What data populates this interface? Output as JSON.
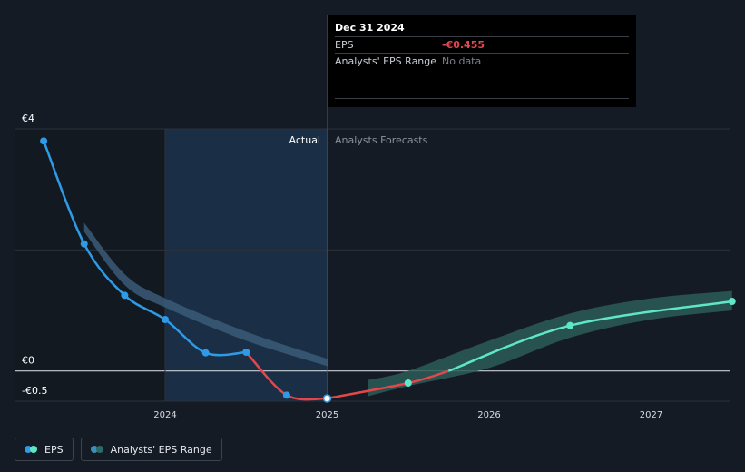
{
  "tooltip": {
    "date": "Dec 31 2024",
    "rows": [
      {
        "label": "EPS",
        "value": "-€0.455"
      },
      {
        "label": "Analysts' EPS Range",
        "value": "No data"
      }
    ]
  },
  "labels": {
    "actual": "Actual",
    "forecast": "Analysts Forecasts"
  },
  "legend": [
    {
      "label": "EPS",
      "colors": [
        "#2f9ae6",
        "#5fe6c8"
      ]
    },
    {
      "label": "Analysts' EPS Range",
      "colors": [
        "#3c8fb8",
        "#2a6a6a"
      ]
    }
  ],
  "colors": {
    "eps_actual": "#2f9ae6",
    "eps_negative": "#e2474c",
    "eps_forecast": "#5fe6c8",
    "range_past": "#3b5a78",
    "range_forecast": "#2c5c57",
    "highlight": "#1d3a57"
  },
  "chart_data": {
    "type": "line",
    "ylim": [
      -0.5,
      4
    ],
    "yticks": [
      {
        "value": 4,
        "label": "€4"
      },
      {
        "value": 0,
        "label": "€0"
      },
      {
        "value": -0.5,
        "label": "-€0.5"
      }
    ],
    "xticks": [
      {
        "value": 2024,
        "label": "2024"
      },
      {
        "value": 2025,
        "label": "2025"
      },
      {
        "value": 2026,
        "label": "2026"
      },
      {
        "value": 2027,
        "label": "2027"
      }
    ],
    "actual_end": 2025.0,
    "series": [
      {
        "name": "EPS",
        "kind": "actual",
        "points": [
          [
            2023.25,
            3.8
          ],
          [
            2023.5,
            2.1
          ],
          [
            2023.75,
            1.25
          ],
          [
            2024.0,
            0.85
          ],
          [
            2024.25,
            0.3
          ],
          [
            2024.5,
            0.31
          ],
          [
            2024.75,
            -0.4
          ],
          [
            2025.0,
            -0.455
          ]
        ]
      },
      {
        "name": "EPS",
        "kind": "forecast",
        "points": [
          [
            2025.0,
            -0.455
          ],
          [
            2025.5,
            -0.2
          ],
          [
            2025.75,
            0.0
          ],
          [
            2026.5,
            0.75
          ],
          [
            2027.5,
            1.15
          ]
        ]
      }
    ],
    "range_past": {
      "upper": [
        [
          2023.5,
          2.45
        ],
        [
          2023.75,
          1.6
        ],
        [
          2024.0,
          1.2
        ],
        [
          2024.5,
          0.65
        ],
        [
          2025.0,
          0.2
        ]
      ],
      "lower": [
        [
          2023.5,
          2.3
        ],
        [
          2023.75,
          1.42
        ],
        [
          2024.0,
          1.05
        ],
        [
          2024.5,
          0.5
        ],
        [
          2025.0,
          0.08
        ]
      ]
    },
    "range_forecast": {
      "upper": [
        [
          2025.25,
          -0.15
        ],
        [
          2025.5,
          0.0
        ],
        [
          2026.0,
          0.5
        ],
        [
          2026.5,
          0.95
        ],
        [
          2027.0,
          1.2
        ],
        [
          2027.5,
          1.32
        ]
      ],
      "lower": [
        [
          2025.25,
          -0.42
        ],
        [
          2025.5,
          -0.25
        ],
        [
          2026.0,
          0.05
        ],
        [
          2026.5,
          0.55
        ],
        [
          2027.0,
          0.85
        ],
        [
          2027.5,
          1.0
        ]
      ]
    }
  }
}
